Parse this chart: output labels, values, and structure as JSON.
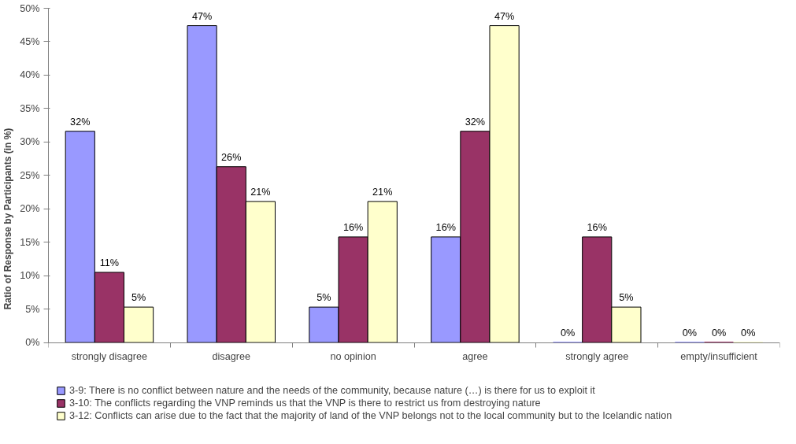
{
  "chart_data": {
    "type": "bar",
    "ylabel": "Ratio of Response by Participants (in %)",
    "categories": [
      "strongly disagree",
      "disagree",
      "no opinion",
      "agree",
      "strongly agree",
      "empty/insufficient"
    ],
    "series": [
      {
        "name": "3-9: There is no conflict between nature and the needs of the community, because nature (…) is there for us to exploit it",
        "color": "#9999ff",
        "values": [
          31.6,
          47.4,
          5.3,
          15.8,
          0,
          0
        ],
        "value_labels": [
          "32%",
          "47%",
          "5%",
          "16%",
          "0%",
          "0%"
        ]
      },
      {
        "name": "3-10: The conflicts regarding the VNP reminds us that the VNP is there to restrict us from destroying nature",
        "color": "#993366",
        "values": [
          10.5,
          26.3,
          15.8,
          31.6,
          15.8,
          0
        ],
        "value_labels": [
          "11%",
          "26%",
          "16%",
          "32%",
          "16%",
          "0%"
        ]
      },
      {
        "name": "3-12: Conflicts can arise due to the fact that the majority of land of the VNP belongs not to the local community but to the Icelandic nation",
        "color": "#ffffcc",
        "values": [
          5.3,
          21.1,
          21.1,
          47.4,
          5.3,
          0
        ],
        "value_labels": [
          "5%",
          "21%",
          "21%",
          "47%",
          "5%",
          "0%"
        ]
      }
    ],
    "ylim": [
      0,
      50
    ],
    "yticks": [
      {
        "value": 0,
        "label": "0%"
      },
      {
        "value": 5,
        "label": "5%"
      },
      {
        "value": 10,
        "label": "10%"
      },
      {
        "value": 15,
        "label": "15%"
      },
      {
        "value": 20,
        "label": "20%"
      },
      {
        "value": 25,
        "label": "25%"
      },
      {
        "value": 30,
        "label": "30%"
      },
      {
        "value": 35,
        "label": "35%"
      },
      {
        "value": 40,
        "label": "40%"
      },
      {
        "value": 45,
        "label": "45%"
      },
      {
        "value": 50,
        "label": "50%"
      }
    ],
    "grid": false,
    "legend": "bottom"
  }
}
